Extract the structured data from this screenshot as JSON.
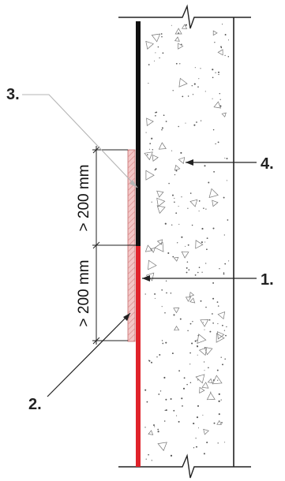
{
  "diagram": {
    "callouts": {
      "item1": "1.",
      "item2": "2.",
      "item3": "3.",
      "item4": "4."
    },
    "dimensions": {
      "upper": "> 200 mm",
      "lower": "> 200 mm"
    },
    "colors": {
      "red_membrane": "#e0232b",
      "black_membrane": "#111111",
      "pink_strip": "#f3c7c7",
      "pink_strip_hatch": "#d88a8a",
      "concrete_fill": "#ffffff",
      "leader_line": "#222222",
      "gray_leader": "#b5b5b5"
    }
  }
}
